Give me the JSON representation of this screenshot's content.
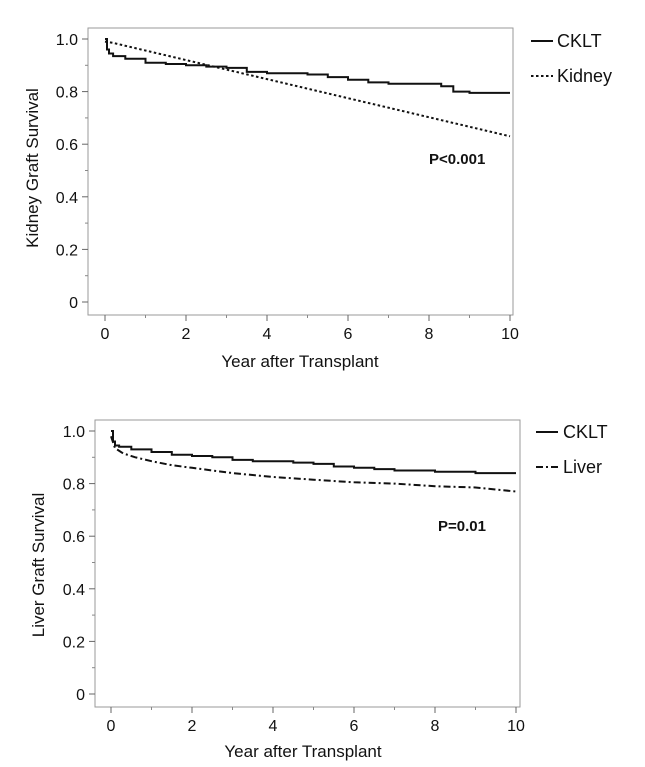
{
  "chart_data": [
    {
      "type": "line",
      "xlabel": "Year after Transplant",
      "ylabel": "Kidney Graft Survival",
      "xlim": [
        0,
        10
      ],
      "ylim": [
        0,
        1.0
      ],
      "xticks": [
        "0",
        "2",
        "4",
        "6",
        "8",
        "10"
      ],
      "yticks": [
        "0",
        "0.2",
        "0.4",
        "0.6",
        "0.8",
        "1.0"
      ],
      "annotation": "P<0.001",
      "grid": false,
      "legend_position": "outside-right",
      "series": [
        {
          "name": "CKLT",
          "style": "solid",
          "step": true,
          "x": [
            0,
            0.05,
            0.1,
            0.2,
            0.5,
            1,
            1.5,
            2,
            2.5,
            3,
            3.5,
            4,
            4.5,
            5,
            5.5,
            6,
            6.5,
            7,
            7.5,
            8,
            8.3,
            8.6,
            9,
            9.5,
            10
          ],
          "y": [
            1.0,
            0.96,
            0.945,
            0.935,
            0.925,
            0.91,
            0.905,
            0.9,
            0.895,
            0.89,
            0.875,
            0.87,
            0.87,
            0.865,
            0.855,
            0.845,
            0.835,
            0.83,
            0.83,
            0.83,
            0.82,
            0.8,
            0.795,
            0.795,
            0.795
          ]
        },
        {
          "name": "Kidney",
          "style": "dotted",
          "step": false,
          "x": [
            0,
            0.2,
            10
          ],
          "y": [
            0.99,
            0.985,
            0.63
          ]
        }
      ]
    },
    {
      "type": "line",
      "xlabel": "Year after Transplant",
      "ylabel": "Liver Graft Survival",
      "xlim": [
        0,
        10
      ],
      "ylim": [
        0,
        1.0
      ],
      "xticks": [
        "0",
        "2",
        "4",
        "6",
        "8",
        "10"
      ],
      "yticks": [
        "0",
        "0.2",
        "0.4",
        "0.6",
        "0.8",
        "1.0"
      ],
      "annotation": "P=0.01",
      "grid": false,
      "legend_position": "outside-right",
      "series": [
        {
          "name": "CKLT",
          "style": "solid",
          "step": true,
          "x": [
            0,
            0.05,
            0.1,
            0.2,
            0.5,
            1,
            1.5,
            2,
            2.5,
            3,
            3.5,
            4,
            4.5,
            5,
            5.5,
            6,
            6.5,
            7,
            7.5,
            8,
            8.5,
            9,
            9.5,
            10
          ],
          "y": [
            1.0,
            0.96,
            0.945,
            0.94,
            0.93,
            0.92,
            0.91,
            0.905,
            0.9,
            0.89,
            0.885,
            0.885,
            0.88,
            0.875,
            0.865,
            0.86,
            0.855,
            0.85,
            0.85,
            0.845,
            0.845,
            0.84,
            0.84,
            0.84
          ]
        },
        {
          "name": "Liver",
          "style": "dashdot",
          "step": false,
          "x": [
            0,
            0.1,
            0.3,
            0.6,
            1,
            1.5,
            2,
            2.5,
            3,
            4,
            5,
            6,
            7,
            8,
            9,
            10
          ],
          "y": [
            0.98,
            0.935,
            0.915,
            0.9,
            0.885,
            0.87,
            0.86,
            0.85,
            0.84,
            0.825,
            0.815,
            0.805,
            0.8,
            0.79,
            0.785,
            0.77
          ]
        }
      ]
    }
  ]
}
